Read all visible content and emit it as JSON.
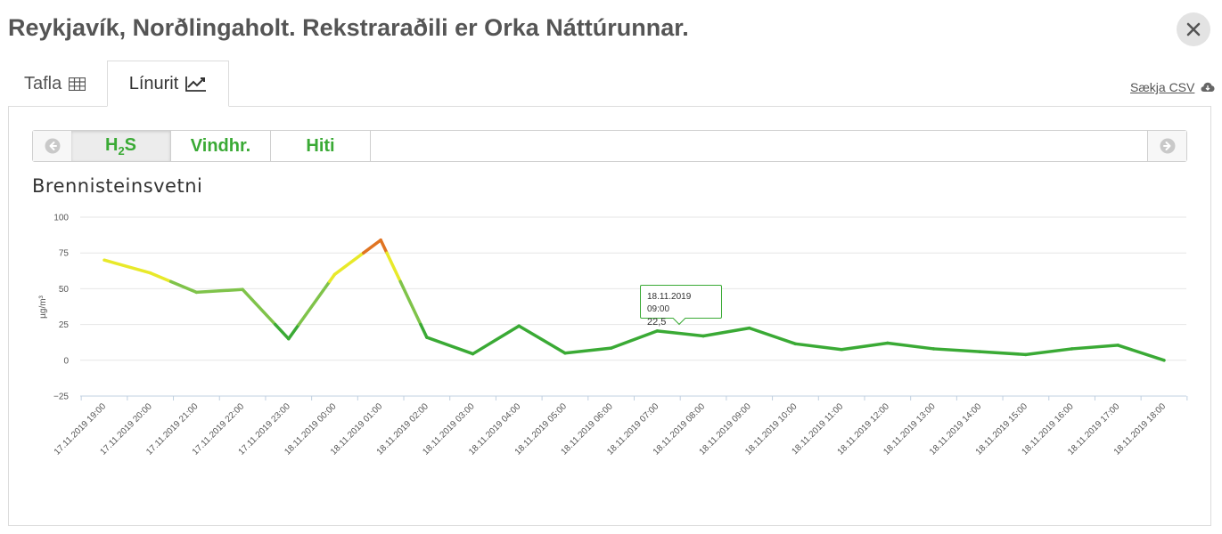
{
  "title": "Reykjavík, Norðlingaholt. Rekstraraðili er Orka Náttúrunnar.",
  "tabs": [
    {
      "label": "Tafla",
      "icon": "table-icon"
    },
    {
      "label": "Línurit",
      "icon": "line-chart-icon"
    }
  ],
  "csv_label": "Sækja CSV",
  "params": [
    {
      "label": "H",
      "sub": "2",
      "suffix": "S"
    },
    {
      "label": "Vindhr."
    },
    {
      "label": "Hiti"
    }
  ],
  "colors": {
    "good": "#3aaa35",
    "moderate": "#7fc34a",
    "elevated": "#e8e92a",
    "high": "#e07422",
    "accent": "#3aaa35"
  },
  "tooltip": {
    "time": "18.11.2019 09:00",
    "value": "22,5"
  },
  "chart_data": {
    "type": "line",
    "title": "Brennisteinsvetni",
    "ylabel": "µg/m³",
    "ylim": [
      -25,
      100
    ],
    "yticks": [
      "100",
      "75",
      "50",
      "25",
      "0",
      "−25"
    ],
    "x": [
      "17.11.2019 19:00",
      "17.11.2019 20:00",
      "17.11.2019 21:00",
      "17.11.2019 22:00",
      "17.11.2019 23:00",
      "18.11.2019 00:00",
      "18.11.2019 01:00",
      "18.11.2019 02:00",
      "18.11.2019 03:00",
      "18.11.2019 04:00",
      "18.11.2019 05:00",
      "18.11.2019 06:00",
      "18.11.2019 07:00",
      "18.11.2019 08:00",
      "18.11.2019 09:00",
      "18.11.2019 10:00",
      "18.11.2019 11:00",
      "18.11.2019 12:00",
      "18.11.2019 13:00",
      "18.11.2019 14:00",
      "18.11.2019 15:00",
      "18.11.2019 16:00",
      "18.11.2019 17:00",
      "18.11.2019 18:00"
    ],
    "values": [
      70,
      61,
      47.5,
      49.5,
      15,
      60,
      84,
      16,
      4.5,
      24,
      5,
      8.5,
      20.5,
      17,
      22.5,
      11.5,
      7.5,
      12,
      8,
      6,
      4,
      8,
      10.5,
      0
    ],
    "grid": true,
    "legend": "none"
  }
}
